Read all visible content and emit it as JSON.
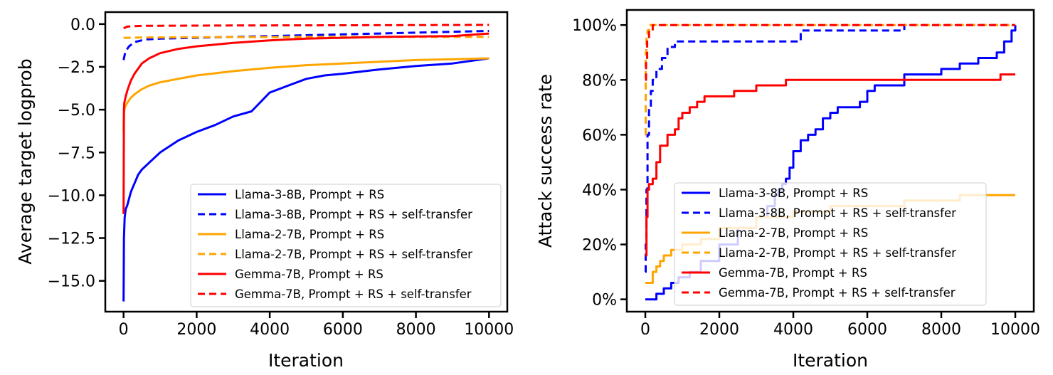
{
  "chart_data": [
    {
      "type": "line",
      "xlabel": "Iteration",
      "ylabel": "Average target logprob",
      "xlim": [
        -500,
        10500
      ],
      "ylim": [
        -16.8,
        0.7
      ],
      "xticks": [
        0,
        2000,
        4000,
        6000,
        8000,
        10000
      ],
      "xtick_labels": [
        "0",
        "2000",
        "4000",
        "6000",
        "8000",
        "10000"
      ],
      "yticks": [
        0.0,
        -2.5,
        -5.0,
        -7.5,
        -10.0,
        -12.5,
        -15.0
      ],
      "ytick_labels": [
        "0.0",
        "−2.5",
        "−5.0",
        "−7.5",
        "−10.0",
        "−12.5",
        "−15.0"
      ],
      "legend_position": "lower-right",
      "series": [
        {
          "name": "Llama-3-8B, Prompt + RS",
          "color": "#0000ff",
          "style": "solid",
          "x": [
            0,
            10,
            30,
            60,
            100,
            200,
            300,
            400,
            500,
            700,
            1000,
            1500,
            2000,
            2500,
            3000,
            3500,
            4000,
            4500,
            5000,
            5500,
            6000,
            7000,
            8000,
            9000,
            10000
          ],
          "y": [
            -16.2,
            -12.5,
            -11.3,
            -10.8,
            -10.6,
            -9.8,
            -9.3,
            -8.8,
            -8.5,
            -8.1,
            -7.5,
            -6.8,
            -6.3,
            -5.9,
            -5.4,
            -5.1,
            -4.0,
            -3.6,
            -3.2,
            -3.0,
            -2.9,
            -2.65,
            -2.45,
            -2.3,
            -2.0
          ]
        },
        {
          "name": "Llama-3-8B, Prompt + RS + self-transfer",
          "color": "#0000ff",
          "style": "dashed",
          "x": [
            0,
            50,
            150,
            300,
            600,
            1000,
            2000,
            3000,
            4000,
            5000,
            6000,
            7000,
            8000,
            9000,
            10000
          ],
          "y": [
            -2.1,
            -1.6,
            -1.3,
            -1.05,
            -0.9,
            -0.85,
            -0.8,
            -0.75,
            -0.7,
            -0.65,
            -0.6,
            -0.55,
            -0.5,
            -0.45,
            -0.4
          ]
        },
        {
          "name": "Llama-2-7B, Prompt + RS",
          "color": "#ffa500",
          "style": "solid",
          "x": [
            0,
            5,
            20,
            50,
            100,
            200,
            300,
            500,
            700,
            1000,
            1500,
            2000,
            3000,
            4000,
            5000,
            6000,
            7000,
            8000,
            9000,
            10000
          ],
          "y": [
            -6.3,
            -5.5,
            -5.0,
            -4.8,
            -4.6,
            -4.3,
            -4.1,
            -3.8,
            -3.6,
            -3.4,
            -3.2,
            -3.0,
            -2.75,
            -2.55,
            -2.4,
            -2.3,
            -2.2,
            -2.1,
            -2.05,
            -2.0
          ]
        },
        {
          "name": "Llama-2-7B, Prompt + RS + self-transfer",
          "color": "#ffa500",
          "style": "dashed",
          "x": [
            0,
            100,
            500,
            1000,
            3000,
            5000,
            7000,
            10000
          ],
          "y": [
            -0.8,
            -0.8,
            -0.78,
            -0.78,
            -0.76,
            -0.75,
            -0.75,
            -0.75
          ]
        },
        {
          "name": "Gemma-7B, Prompt + RS",
          "color": "#ff0000",
          "style": "solid",
          "x": [
            0,
            10,
            20,
            50,
            100,
            150,
            200,
            300,
            400,
            500,
            700,
            1000,
            1500,
            2000,
            3000,
            4000,
            5000,
            6000,
            7000,
            8000,
            9000,
            10000
          ],
          "y": [
            -11.1,
            -5.0,
            -4.6,
            -4.3,
            -3.9,
            -3.6,
            -3.3,
            -2.9,
            -2.6,
            -2.3,
            -2.0,
            -1.7,
            -1.45,
            -1.3,
            -1.1,
            -0.95,
            -0.85,
            -0.8,
            -0.75,
            -0.72,
            -0.7,
            -0.55
          ]
        },
        {
          "name": "Gemma-7B, Prompt + RS + self-transfer",
          "color": "#ff0000",
          "style": "dashed",
          "x": [
            0,
            100,
            300,
            600,
            1000,
            3000,
            6000,
            10000
          ],
          "y": [
            -0.25,
            -0.15,
            -0.12,
            -0.1,
            -0.1,
            -0.08,
            -0.07,
            -0.05
          ]
        }
      ]
    },
    {
      "type": "line",
      "xlabel": "Iteration",
      "ylabel": "Attack success rate",
      "xlim": [
        -500,
        10500
      ],
      "ylim": [
        -4.5,
        105.5
      ],
      "xticks": [
        0,
        2000,
        4000,
        6000,
        8000,
        10000
      ],
      "xtick_labels": [
        "0",
        "2000",
        "4000",
        "6000",
        "8000",
        "10000"
      ],
      "yticks": [
        0,
        20,
        40,
        60,
        80,
        100
      ],
      "ytick_labels": [
        "0%",
        "20%",
        "40%",
        "60%",
        "80%",
        "100%"
      ],
      "legend_position": "lower-right",
      "series": [
        {
          "name": "Llama-3-8B, Prompt + RS",
          "color": "#0000ff",
          "style": "solid",
          "step": true,
          "x": [
            0,
            300,
            500,
            700,
            900,
            1200,
            1500,
            2000,
            2500,
            3000,
            3300,
            3500,
            3600,
            3700,
            3800,
            3900,
            4000,
            4200,
            4400,
            4600,
            4800,
            5000,
            5200,
            5500,
            5800,
            6000,
            6200,
            6500,
            7000,
            7500,
            8000,
            8500,
            9000,
            9500,
            9700,
            9900,
            10000
          ],
          "y": [
            0,
            2,
            4,
            6,
            8,
            10,
            14,
            20,
            26,
            30,
            34,
            38,
            40,
            42,
            44,
            48,
            54,
            58,
            60,
            62,
            66,
            68,
            70,
            70,
            72,
            76,
            78,
            78,
            82,
            82,
            84,
            86,
            88,
            90,
            94,
            98,
            100
          ]
        },
        {
          "name": "Llama-3-8B, Prompt + RS + self-transfer",
          "color": "#0000ff",
          "style": "dashed",
          "step": true,
          "x": [
            0,
            10,
            30,
            60,
            100,
            150,
            200,
            300,
            450,
            600,
            800,
            1000,
            2000,
            3000,
            4000,
            4200,
            5800,
            7000,
            9000,
            10000
          ],
          "y": [
            10,
            20,
            40,
            60,
            70,
            76,
            80,
            84,
            88,
            92,
            94,
            94,
            94,
            94,
            94,
            98,
            98,
            100,
            100,
            100
          ]
        },
        {
          "name": "Llama-2-7B, Prompt + RS",
          "color": "#ffa500",
          "style": "solid",
          "step": true,
          "x": [
            0,
            200,
            300,
            400,
            500,
            700,
            1000,
            1500,
            2000,
            3000,
            4000,
            5000,
            6000,
            7000,
            7600,
            8500,
            10000
          ],
          "y": [
            6,
            10,
            12,
            14,
            16,
            18,
            20,
            22,
            26,
            30,
            32,
            34,
            34,
            36,
            36,
            38,
            38
          ]
        },
        {
          "name": "Llama-2-7B, Prompt + RS + self-transfer",
          "color": "#ffa500",
          "style": "dashed",
          "step": true,
          "x": [
            0,
            10,
            30,
            60,
            100,
            200,
            10000
          ],
          "y": [
            60,
            90,
            96,
            98,
            100,
            100,
            100
          ]
        },
        {
          "name": "Gemma-7B, Prompt + RS",
          "color": "#ff0000",
          "style": "solid",
          "step": true,
          "x": [
            0,
            30,
            60,
            100,
            200,
            300,
            400,
            600,
            800,
            900,
            1000,
            1200,
            1400,
            1600,
            2000,
            2400,
            3000,
            3800,
            6000,
            8000,
            9600,
            10000
          ],
          "y": [
            16,
            30,
            40,
            42,
            44,
            50,
            56,
            60,
            62,
            66,
            68,
            70,
            72,
            74,
            74,
            76,
            78,
            80,
            80,
            80,
            82,
            82
          ]
        },
        {
          "name": "Gemma-7B, Prompt + RS + self-transfer",
          "color": "#ff0000",
          "style": "dashed",
          "step": true,
          "x": [
            0,
            20,
            50,
            100,
            200,
            300,
            10000
          ],
          "y": [
            80,
            88,
            94,
            98,
            100,
            100,
            100
          ]
        }
      ]
    }
  ]
}
